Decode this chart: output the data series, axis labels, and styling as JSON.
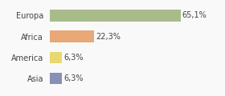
{
  "categories": [
    "Europa",
    "Africa",
    "America",
    "Asia"
  ],
  "values": [
    65.1,
    22.3,
    6.3,
    6.3
  ],
  "labels": [
    "65,1%",
    "22,3%",
    "6,3%",
    "6,3%"
  ],
  "bar_colors": [
    "#a8bc8a",
    "#e8a878",
    "#e8d870",
    "#8890b8"
  ],
  "background_color": "#f9f9f9",
  "xlim": [
    0,
    85
  ],
  "bar_height": 0.55,
  "label_fontsize": 7,
  "tick_fontsize": 7
}
